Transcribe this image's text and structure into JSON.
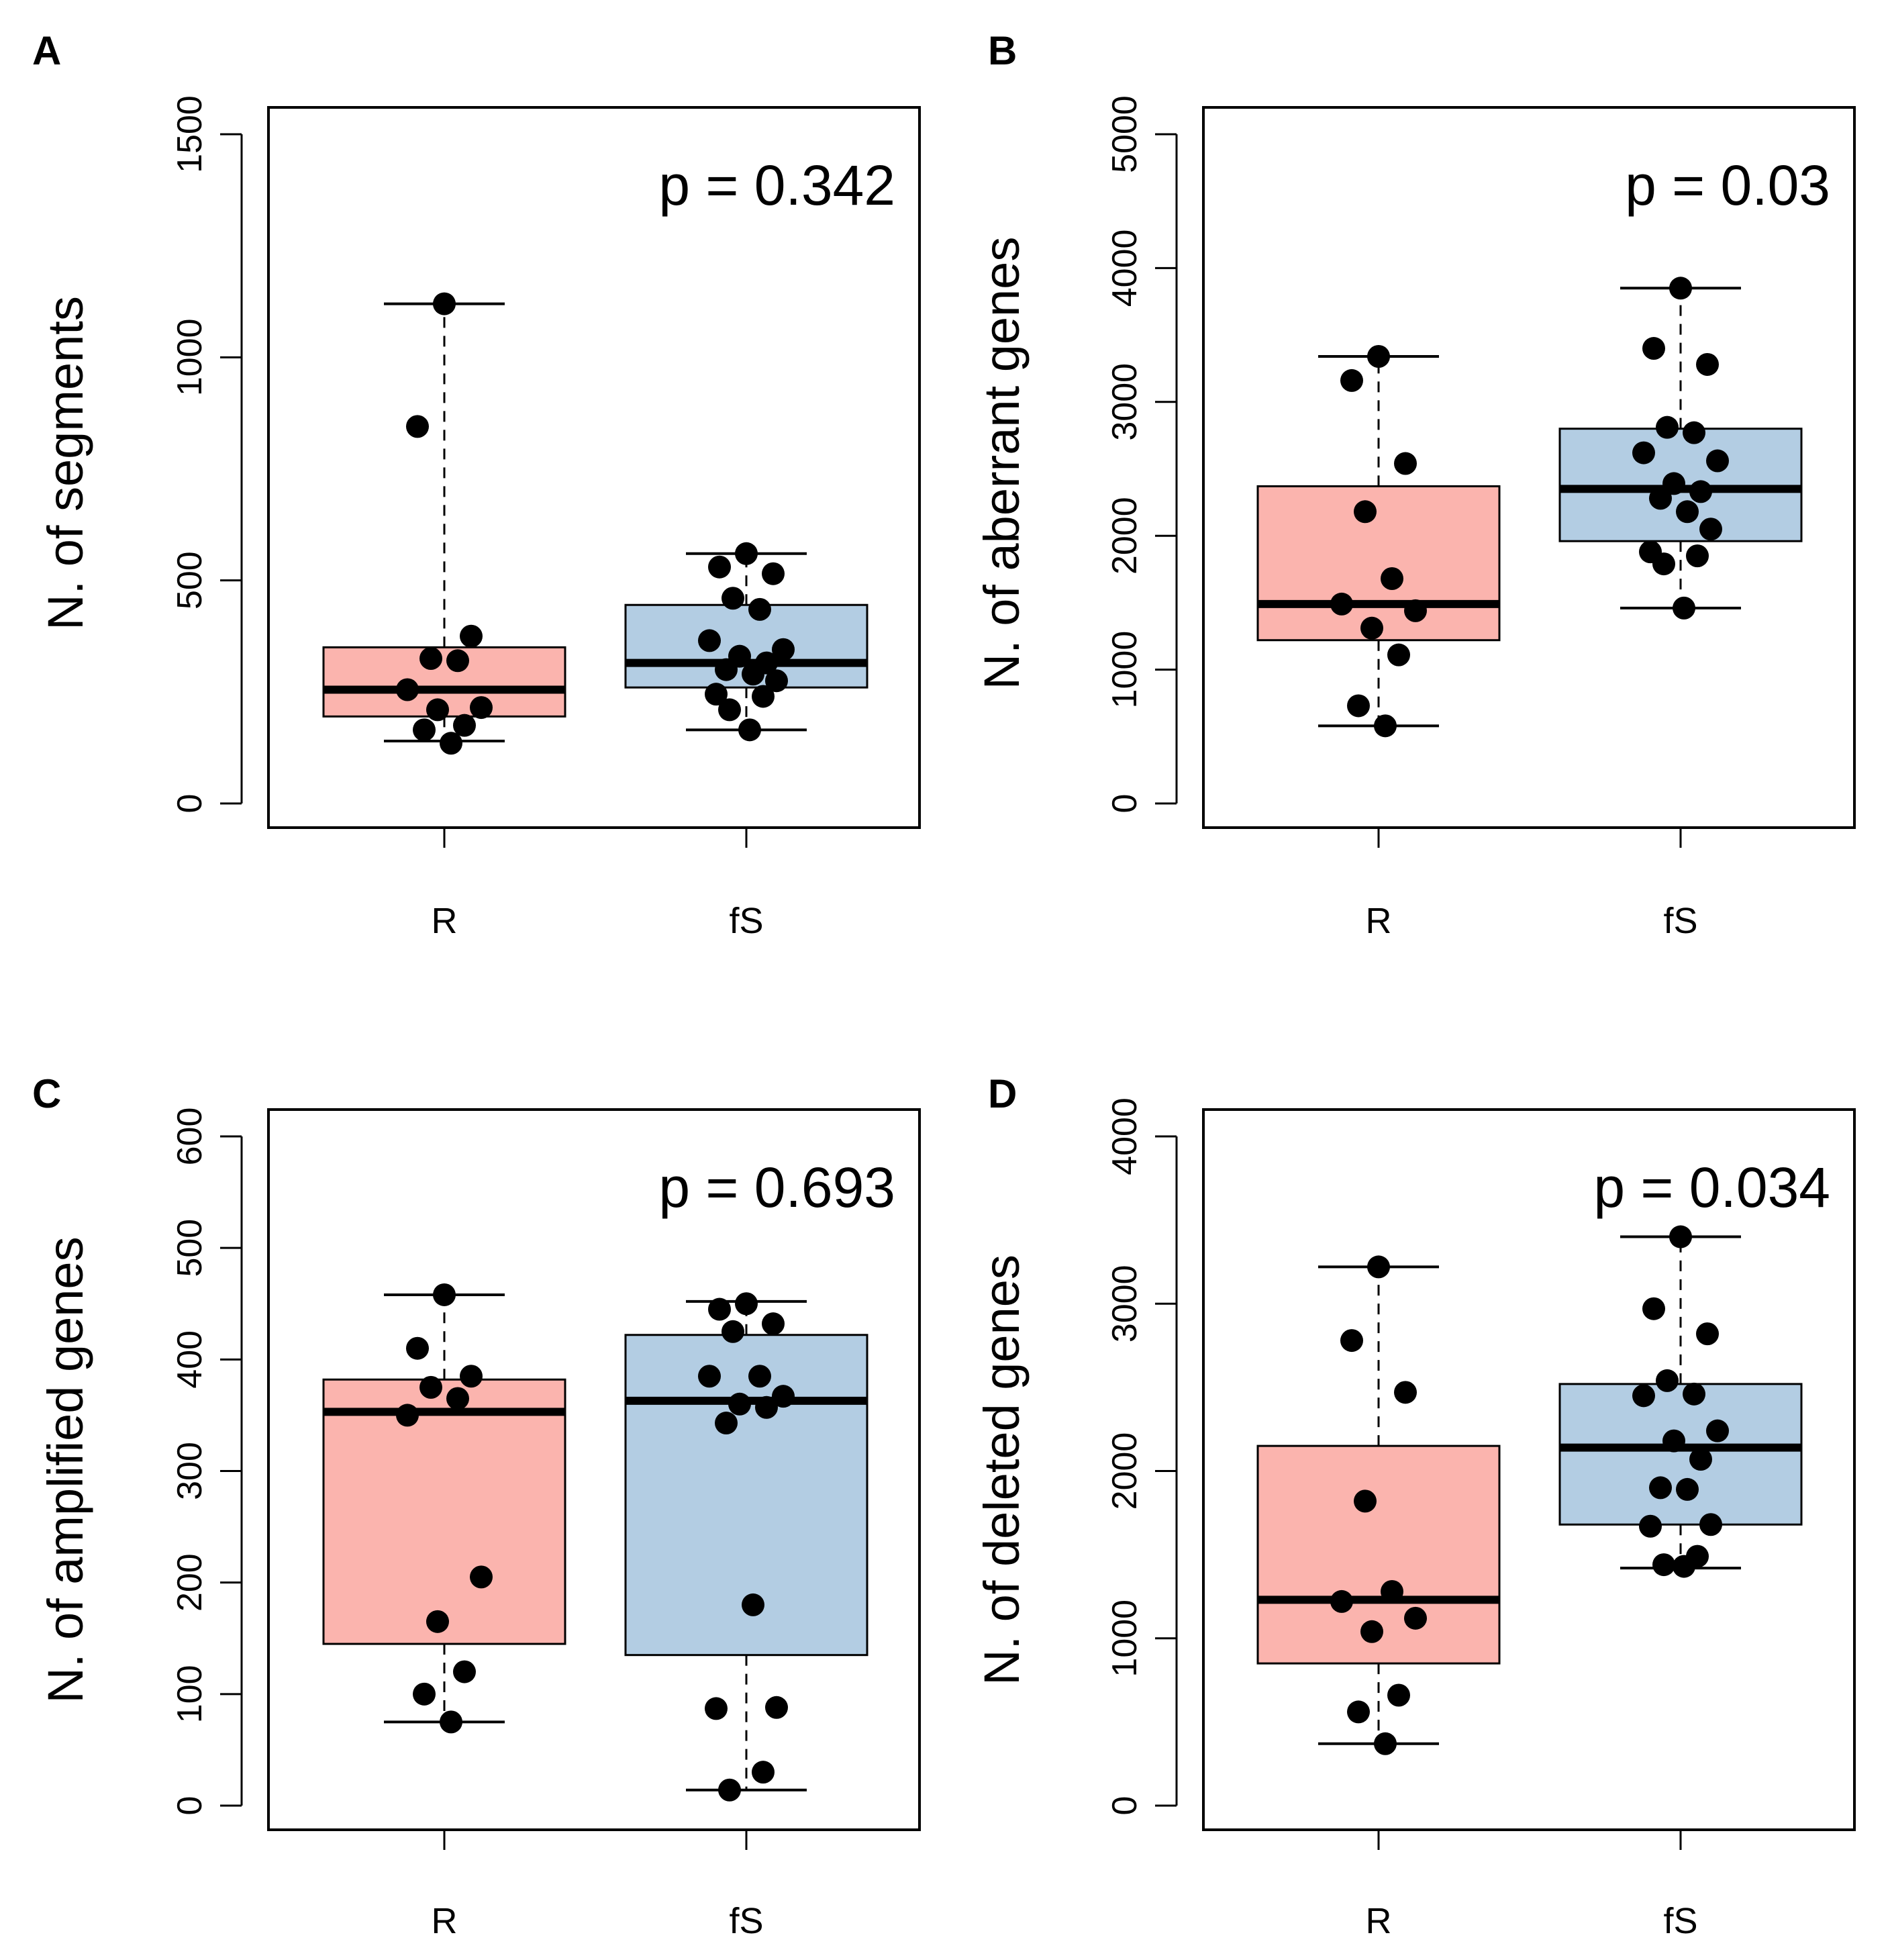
{
  "colors": {
    "R": "#fbb4ae",
    "fS": "#b3cde3",
    "stroke": "#000000",
    "point": "#000000"
  },
  "chart_data": [
    {
      "panel": "A",
      "type": "boxplot",
      "ylabel": "N. of segments",
      "ylim": [
        0,
        1500
      ],
      "yticks": [
        0,
        500,
        1000,
        1500
      ],
      "categories": [
        "R",
        "fS"
      ],
      "p_label": "p = 0.342",
      "groups": [
        {
          "name": "R",
          "whisker_low": 140,
          "q1": 195,
          "median": 255,
          "q3": 350,
          "whisker_high": 1120,
          "points": [
            1120,
            845,
            375,
            325,
            320,
            255,
            215,
            210,
            175,
            165,
            135
          ]
        },
        {
          "name": "fS",
          "whisker_low": 165,
          "q1": 260,
          "median": 315,
          "q3": 445,
          "whisker_high": 560,
          "points": [
            560,
            530,
            515,
            460,
            435,
            365,
            345,
            330,
            315,
            300,
            290,
            275,
            245,
            240,
            210,
            165
          ]
        }
      ]
    },
    {
      "panel": "B",
      "type": "boxplot",
      "ylabel": "N. of aberrant genes",
      "ylim": [
        0,
        5000
      ],
      "yticks": [
        0,
        1000,
        2000,
        3000,
        4000,
        5000
      ],
      "categories": [
        "R",
        "fS"
      ],
      "p_label": "p = 0.03",
      "groups": [
        {
          "name": "R",
          "whisker_low": 580,
          "q1": 1220,
          "median": 1490,
          "q3": 2370,
          "whisker_high": 3340,
          "points": [
            3340,
            3160,
            2540,
            2180,
            1680,
            1490,
            1440,
            1310,
            1110,
            730,
            580
          ]
        },
        {
          "name": "fS",
          "whisker_low": 1460,
          "q1": 1960,
          "median": 2350,
          "q3": 2800,
          "whisker_high": 3850,
          "points": [
            3850,
            3400,
            3280,
            2810,
            2770,
            2620,
            2560,
            2390,
            2330,
            2280,
            2180,
            2050,
            1880,
            1850,
            1790,
            1460
          ]
        }
      ]
    },
    {
      "panel": "C",
      "type": "boxplot",
      "ylabel": "N. of amplified genes",
      "ylim": [
        0,
        600
      ],
      "yticks": [
        0,
        100,
        200,
        300,
        400,
        500,
        600
      ],
      "categories": [
        "R",
        "fS"
      ],
      "p_label": "p = 0.693",
      "groups": [
        {
          "name": "R",
          "whisker_low": 75,
          "q1": 145,
          "median": 353,
          "q3": 382,
          "whisker_high": 458,
          "points": [
            458,
            410,
            385,
            375,
            365,
            350,
            205,
            165,
            120,
            100,
            75
          ]
        },
        {
          "name": "fS",
          "whisker_low": 14,
          "q1": 135,
          "median": 363,
          "q3": 422,
          "whisker_high": 452,
          "points": [
            450,
            445,
            432,
            425,
            385,
            385,
            367,
            360,
            357,
            343,
            180,
            88,
            87,
            30,
            14
          ]
        }
      ]
    },
    {
      "panel": "D",
      "type": "boxplot",
      "ylabel": "N. of deleted genes",
      "ylim": [
        0,
        4000
      ],
      "yticks": [
        0,
        1000,
        2000,
        3000,
        4000
      ],
      "categories": [
        "R",
        "fS"
      ],
      "p_label": "p = 0.034",
      "groups": [
        {
          "name": "R",
          "whisker_low": 370,
          "q1": 850,
          "median": 1230,
          "q3": 2150,
          "whisker_high": 3220,
          "points": [
            3220,
            2780,
            2470,
            1820,
            1280,
            1220,
            1120,
            1040,
            660,
            560,
            370
          ]
        },
        {
          "name": "fS",
          "whisker_low": 1420,
          "q1": 1680,
          "median": 2140,
          "q3": 2520,
          "whisker_high": 3400,
          "points": [
            3400,
            2970,
            2820,
            2540,
            2460,
            2450,
            2240,
            2180,
            2070,
            1900,
            1890,
            1680,
            1670,
            1490,
            1440,
            1430
          ]
        }
      ]
    }
  ]
}
